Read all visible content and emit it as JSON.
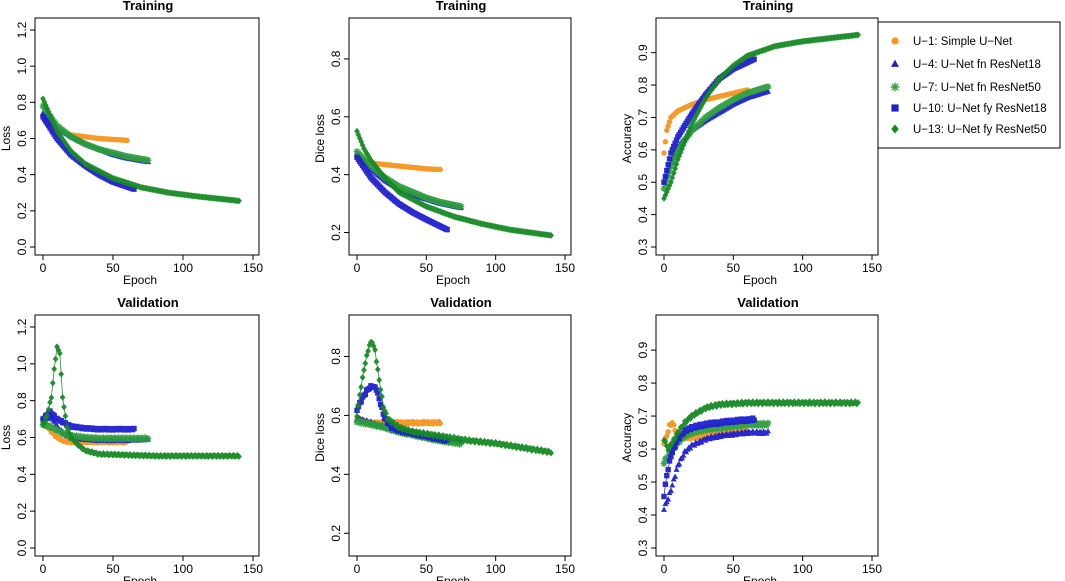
{
  "legend": {
    "entries": [
      {
        "id": "u1",
        "label": "U−1: Simple U−Net",
        "color": "#F7941D",
        "marker": "circle"
      },
      {
        "id": "u4",
        "label": "U−4: U−Net fn ResNet18",
        "color": "#1F1FD0",
        "marker": "triangle"
      },
      {
        "id": "u7",
        "label": "U−7: U−Net fn ResNet50",
        "color": "#2E9E3E",
        "marker": "asterisk"
      },
      {
        "id": "u10",
        "label": "U−10: U−Net fy ResNet18",
        "color": "#1F1FD0",
        "marker": "square"
      },
      {
        "id": "u13",
        "label": "U−13: U−Net fy ResNet50",
        "color": "#178A24",
        "marker": "diamond"
      }
    ]
  },
  "chart_data": [
    {
      "id": "train-loss",
      "type": "scatter",
      "title": "Training",
      "xlabel": "Epoch",
      "ylabel": "Loss",
      "xlim": [
        0,
        150
      ],
      "ylim": [
        0,
        1.2
      ],
      "xticks": [
        "0",
        "50",
        "100",
        "150"
      ],
      "yticks": [
        "0.0",
        "0.2",
        "0.4",
        "0.6",
        "0.8",
        "1.0",
        "1.2"
      ],
      "series": [
        {
          "id": "u1",
          "x": [
            0,
            5,
            10,
            20,
            30,
            40,
            50,
            60
          ],
          "y": [
            0.72,
            0.66,
            0.64,
            0.62,
            0.61,
            0.6,
            0.595,
            0.59
          ]
        },
        {
          "id": "u4",
          "x": [
            0,
            10,
            20,
            30,
            40,
            50,
            60,
            75
          ],
          "y": [
            0.74,
            0.66,
            0.61,
            0.57,
            0.54,
            0.51,
            0.49,
            0.47
          ]
        },
        {
          "id": "u7",
          "x": [
            0,
            10,
            20,
            30,
            40,
            50,
            60,
            75
          ],
          "y": [
            0.78,
            0.67,
            0.61,
            0.57,
            0.54,
            0.52,
            0.5,
            0.48
          ]
        },
        {
          "id": "u10",
          "x": [
            0,
            10,
            20,
            30,
            40,
            50,
            65
          ],
          "y": [
            0.72,
            0.6,
            0.51,
            0.45,
            0.4,
            0.36,
            0.32
          ]
        },
        {
          "id": "u13",
          "x": [
            0,
            10,
            20,
            30,
            50,
            70,
            90,
            110,
            140
          ],
          "y": [
            0.82,
            0.64,
            0.53,
            0.46,
            0.38,
            0.33,
            0.3,
            0.28,
            0.255
          ]
        }
      ]
    },
    {
      "id": "train-dice",
      "type": "scatter",
      "title": "Training",
      "xlabel": "Epoch",
      "ylabel": "Dice loss",
      "xlim": [
        0,
        150
      ],
      "ylim": [
        0.15,
        0.9
      ],
      "xticks": [
        "0",
        "50",
        "100",
        "150"
      ],
      "yticks": [
        "0.2",
        "0.4",
        "0.6",
        "0.8"
      ],
      "series": [
        {
          "id": "u1",
          "x": [
            0,
            5,
            10,
            20,
            30,
            40,
            50,
            60
          ],
          "y": [
            0.47,
            0.45,
            0.44,
            0.435,
            0.43,
            0.425,
            0.42,
            0.418
          ]
        },
        {
          "id": "u4",
          "x": [
            0,
            10,
            20,
            30,
            40,
            50,
            60,
            75
          ],
          "y": [
            0.47,
            0.42,
            0.38,
            0.35,
            0.33,
            0.315,
            0.3,
            0.285
          ]
        },
        {
          "id": "u7",
          "x": [
            0,
            10,
            20,
            30,
            40,
            50,
            60,
            75
          ],
          "y": [
            0.48,
            0.43,
            0.39,
            0.36,
            0.34,
            0.32,
            0.305,
            0.29
          ]
        },
        {
          "id": "u10",
          "x": [
            0,
            10,
            20,
            30,
            40,
            50,
            65
          ],
          "y": [
            0.46,
            0.39,
            0.34,
            0.3,
            0.27,
            0.245,
            0.21
          ]
        },
        {
          "id": "u13",
          "x": [
            0,
            5,
            10,
            20,
            30,
            50,
            70,
            90,
            110,
            140
          ],
          "y": [
            0.55,
            0.49,
            0.45,
            0.39,
            0.34,
            0.29,
            0.255,
            0.23,
            0.21,
            0.19
          ]
        }
      ]
    },
    {
      "id": "train-acc",
      "type": "scatter",
      "title": "Training",
      "xlabel": "Epoch",
      "ylabel": "Accuracy",
      "xlim": [
        0,
        150
      ],
      "ylim": [
        0.3,
        0.97
      ],
      "xticks": [
        "0",
        "50",
        "100",
        "150"
      ],
      "yticks": [
        "0.3",
        "0.4",
        "0.5",
        "0.6",
        "0.7",
        "0.8",
        "0.9"
      ],
      "series": [
        {
          "id": "u1",
          "x": [
            0,
            2,
            5,
            10,
            20,
            30,
            40,
            50,
            60
          ],
          "y": [
            0.59,
            0.66,
            0.7,
            0.72,
            0.74,
            0.755,
            0.765,
            0.775,
            0.785
          ]
        },
        {
          "id": "u4",
          "x": [
            0,
            5,
            10,
            20,
            30,
            40,
            50,
            60,
            75
          ],
          "y": [
            0.5,
            0.56,
            0.61,
            0.66,
            0.69,
            0.715,
            0.74,
            0.76,
            0.78
          ]
        },
        {
          "id": "u7",
          "x": [
            0,
            5,
            10,
            20,
            30,
            40,
            50,
            60,
            75
          ],
          "y": [
            0.48,
            0.55,
            0.6,
            0.66,
            0.7,
            0.73,
            0.755,
            0.775,
            0.795
          ]
        },
        {
          "id": "u10",
          "x": [
            0,
            5,
            10,
            20,
            30,
            40,
            50,
            65
          ],
          "y": [
            0.5,
            0.59,
            0.64,
            0.71,
            0.77,
            0.82,
            0.85,
            0.88
          ]
        },
        {
          "id": "u13",
          "x": [
            0,
            5,
            10,
            20,
            30,
            40,
            50,
            60,
            80,
            100,
            120,
            140
          ],
          "y": [
            0.45,
            0.5,
            0.57,
            0.68,
            0.76,
            0.82,
            0.86,
            0.89,
            0.92,
            0.935,
            0.945,
            0.955
          ]
        }
      ]
    },
    {
      "id": "val-loss",
      "type": "scatter",
      "title": "Validation",
      "xlabel": "Epoch",
      "ylabel": "Loss",
      "xlim": [
        0,
        150
      ],
      "ylim": [
        0,
        1.2
      ],
      "xticks": [
        "0",
        "50",
        "100",
        "150"
      ],
      "yticks": [
        "0.0",
        "0.2",
        "0.4",
        "0.6",
        "0.8",
        "1.0",
        "1.2"
      ],
      "series": [
        {
          "id": "u1",
          "x": [
            0,
            3,
            5,
            10,
            15,
            20,
            30,
            40,
            50,
            60
          ],
          "y": [
            0.7,
            0.66,
            0.64,
            0.6,
            0.58,
            0.575,
            0.575,
            0.575,
            0.575,
            0.575
          ]
        },
        {
          "id": "u4",
          "x": [
            0,
            5,
            10,
            15,
            20,
            30,
            40,
            50,
            60,
            75
          ],
          "y": [
            0.68,
            0.72,
            0.66,
            0.62,
            0.6,
            0.59,
            0.585,
            0.585,
            0.585,
            0.59
          ]
        },
        {
          "id": "u7",
          "x": [
            0,
            5,
            10,
            15,
            20,
            30,
            40,
            50,
            60,
            75
          ],
          "y": [
            0.67,
            0.66,
            0.64,
            0.62,
            0.61,
            0.6,
            0.595,
            0.595,
            0.595,
            0.595
          ]
        },
        {
          "id": "u10",
          "x": [
            0,
            5,
            10,
            15,
            20,
            30,
            40,
            50,
            65
          ],
          "y": [
            0.7,
            0.74,
            0.7,
            0.68,
            0.66,
            0.65,
            0.645,
            0.645,
            0.645
          ]
        },
        {
          "id": "u13",
          "x": [
            0,
            3,
            6,
            8,
            10,
            12,
            14,
            17,
            20,
            25,
            30,
            40,
            60,
            80,
            100,
            120,
            140
          ],
          "y": [
            0.67,
            0.72,
            0.82,
            0.97,
            1.09,
            1.06,
            0.82,
            0.66,
            0.6,
            0.56,
            0.53,
            0.51,
            0.505,
            0.5,
            0.5,
            0.5,
            0.5
          ]
        }
      ]
    },
    {
      "id": "val-dice",
      "type": "scatter",
      "title": "Validation",
      "xlabel": "Epoch",
      "ylabel": "Dice loss",
      "xlim": [
        0,
        150
      ],
      "ylim": [
        0.15,
        0.9
      ],
      "xticks": [
        "0",
        "50",
        "100",
        "150"
      ],
      "yticks": [
        "0.2",
        "0.4",
        "0.6",
        "0.8"
      ],
      "series": [
        {
          "id": "u1",
          "x": [
            0,
            5,
            10,
            20,
            30,
            40,
            50,
            60
          ],
          "y": [
            0.59,
            0.58,
            0.575,
            0.575,
            0.575,
            0.575,
            0.575,
            0.575
          ]
        },
        {
          "id": "u4",
          "x": [
            0,
            10,
            20,
            30,
            40,
            50,
            60,
            75
          ],
          "y": [
            0.59,
            0.575,
            0.56,
            0.545,
            0.535,
            0.525,
            0.515,
            0.51
          ]
        },
        {
          "id": "u7",
          "x": [
            0,
            10,
            20,
            30,
            40,
            50,
            60,
            75
          ],
          "y": [
            0.58,
            0.57,
            0.56,
            0.545,
            0.535,
            0.525,
            0.515,
            0.505
          ]
        },
        {
          "id": "u10",
          "x": [
            0,
            4,
            8,
            11,
            14,
            17,
            20,
            25,
            30,
            40,
            50,
            65
          ],
          "y": [
            0.62,
            0.66,
            0.69,
            0.7,
            0.69,
            0.64,
            0.59,
            0.56,
            0.55,
            0.54,
            0.53,
            0.515
          ]
        },
        {
          "id": "u13",
          "x": [
            0,
            3,
            6,
            9,
            11,
            13,
            16,
            19,
            22,
            30,
            40,
            60,
            80,
            100,
            120,
            140
          ],
          "y": [
            0.6,
            0.7,
            0.78,
            0.84,
            0.85,
            0.82,
            0.72,
            0.63,
            0.59,
            0.56,
            0.545,
            0.53,
            0.515,
            0.505,
            0.49,
            0.475
          ]
        }
      ]
    },
    {
      "id": "val-acc",
      "type": "scatter",
      "title": "Validation",
      "xlabel": "Epoch",
      "ylabel": "Accuracy",
      "xlim": [
        0,
        150
      ],
      "ylim": [
        0.3,
        0.97
      ],
      "xticks": [
        "0",
        "50",
        "100",
        "150"
      ],
      "yticks": [
        "0.3",
        "0.4",
        "0.5",
        "0.6",
        "0.7",
        "0.8",
        "0.9"
      ],
      "series": [
        {
          "id": "u1",
          "x": [
            0,
            2,
            4,
            6,
            8,
            10,
            15,
            20,
            30,
            40,
            50,
            60
          ],
          "y": [
            0.62,
            0.64,
            0.67,
            0.68,
            0.66,
            0.64,
            0.635,
            0.635,
            0.64,
            0.645,
            0.65,
            0.655
          ]
        },
        {
          "id": "u4",
          "x": [
            0,
            3,
            6,
            10,
            15,
            20,
            30,
            40,
            50,
            60,
            75
          ],
          "y": [
            0.42,
            0.45,
            0.49,
            0.55,
            0.59,
            0.61,
            0.63,
            0.64,
            0.645,
            0.65,
            0.65
          ]
        },
        {
          "id": "u7",
          "x": [
            0,
            3,
            6,
            10,
            15,
            20,
            30,
            40,
            50,
            60,
            75
          ],
          "y": [
            0.56,
            0.58,
            0.6,
            0.62,
            0.64,
            0.65,
            0.66,
            0.665,
            0.67,
            0.675,
            0.675
          ]
        },
        {
          "id": "u10",
          "x": [
            0,
            2,
            5,
            10,
            15,
            20,
            30,
            40,
            50,
            65
          ],
          "y": [
            0.46,
            0.52,
            0.58,
            0.63,
            0.655,
            0.665,
            0.675,
            0.68,
            0.685,
            0.69
          ]
        },
        {
          "id": "u13",
          "x": [
            0,
            3,
            6,
            10,
            15,
            20,
            30,
            40,
            60,
            80,
            100,
            120,
            140
          ],
          "y": [
            0.63,
            0.6,
            0.62,
            0.65,
            0.68,
            0.7,
            0.725,
            0.735,
            0.74,
            0.74,
            0.74,
            0.74,
            0.74
          ]
        }
      ]
    }
  ]
}
